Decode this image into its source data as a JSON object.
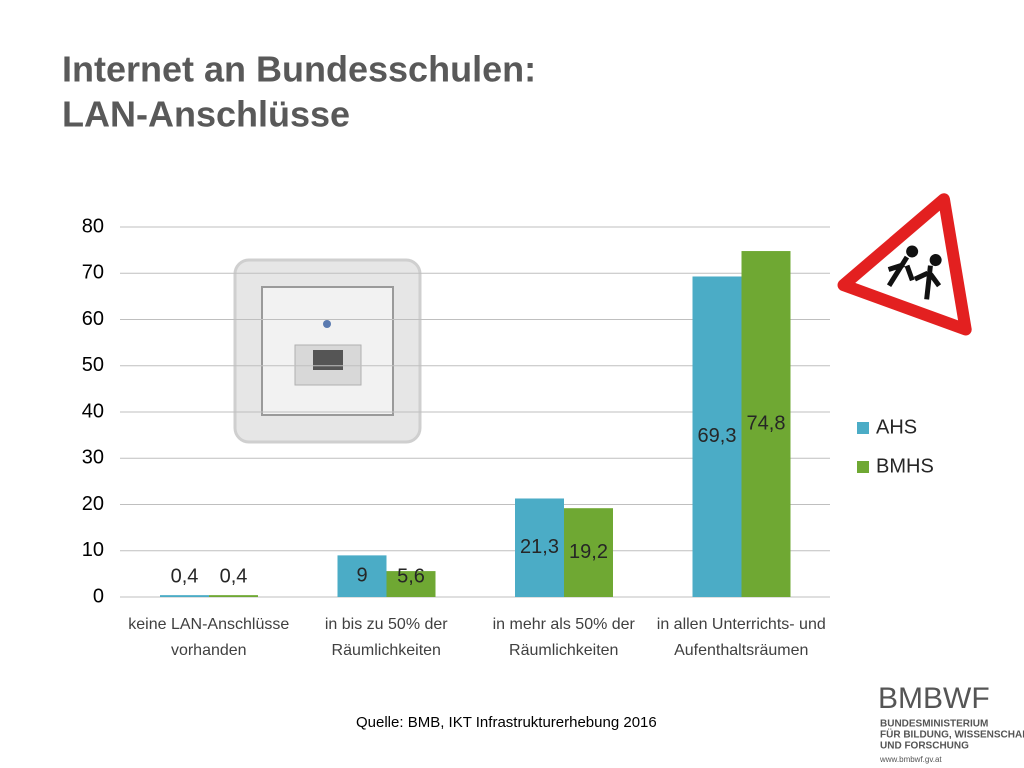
{
  "chart_data": {
    "type": "bar",
    "title": [
      "Internet an Bundesschulen:",
      "LAN-Anschlüsse"
    ],
    "categories": [
      "keine LAN-Anschlüsse vorhanden",
      "in bis zu 50% der Räumlichkeiten",
      "in mehr als 50% der Räumlichkeiten",
      "in allen Unterrichts- und Aufenthaltsräumen"
    ],
    "series": [
      {
        "name": "AHS",
        "color": "#4bacc6",
        "values": [
          0.4,
          9,
          21.3,
          69.3
        ],
        "value_labels": [
          "0,4",
          "9",
          "21,3",
          "69,3"
        ]
      },
      {
        "name": "BMHS",
        "color": "#6fa833",
        "values": [
          0.4,
          5.6,
          19.2,
          74.8
        ],
        "value_labels": [
          "0,4",
          "5,6",
          "19,2",
          "74,8"
        ]
      }
    ],
    "ylim": [
      0,
      80
    ],
    "yticks": [
      0,
      10,
      20,
      30,
      40,
      50,
      60,
      70,
      80
    ],
    "grid": true,
    "legend": "right"
  },
  "source": "Quelle: BMB, IKT Infrastrukturerhebung 2016",
  "logo": {
    "name": "BMBWF",
    "lines": [
      "BUNDESMINISTERIUM",
      "FÜR BILDUNG, WISSENSCHAFT",
      "UND FORSCHUNG"
    ],
    "url": "www.bmbwf.gv.at"
  }
}
